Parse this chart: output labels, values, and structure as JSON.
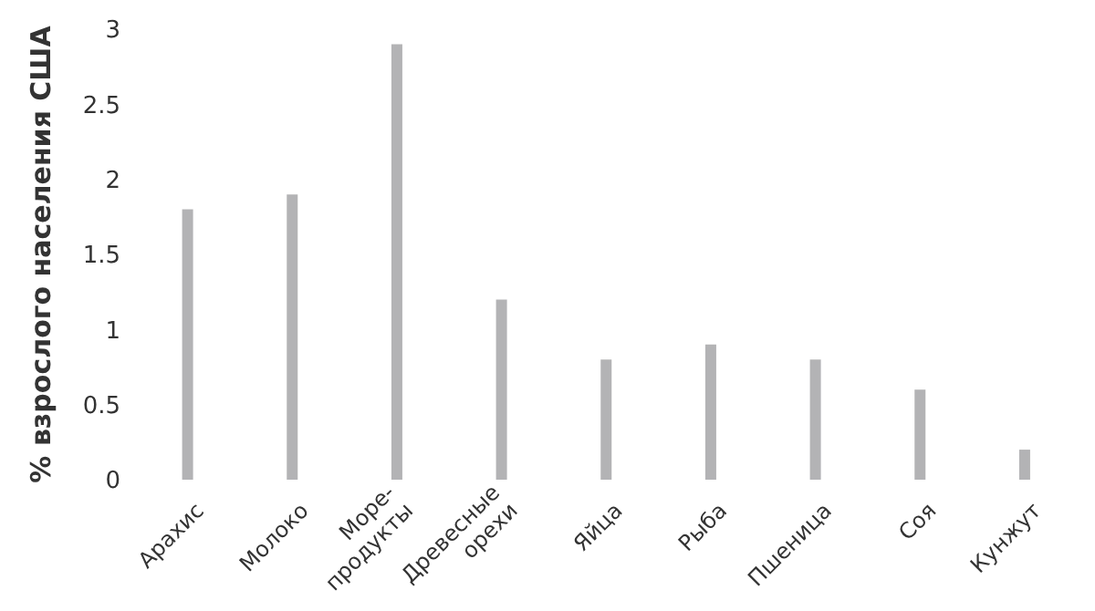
{
  "chart_data": {
    "type": "bar",
    "ylabel": "% взрослого населения США",
    "categories": [
      "Арахис",
      "Молоко",
      "Море-\nпродукты",
      "Древесные\nорехи",
      "Яйца",
      "Рыба",
      "Пшеница",
      "Соя",
      "Кунжут"
    ],
    "values": [
      1.8,
      1.9,
      2.9,
      1.2,
      0.8,
      0.9,
      0.8,
      0.6,
      0.2
    ],
    "color": "#b3b3b5",
    "ylim": [
      0,
      3
    ],
    "yticks": [
      0,
      0.5,
      1,
      1.5,
      2,
      2.5,
      3
    ],
    "grid": false,
    "legend": false
  }
}
